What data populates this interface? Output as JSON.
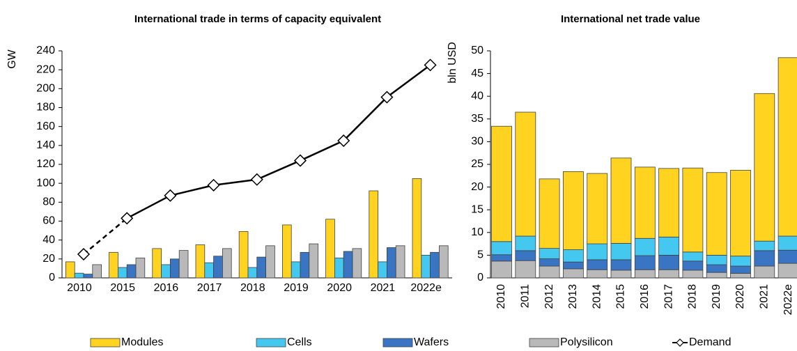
{
  "chart_data": [
    {
      "type": "grouped_bar_line",
      "title": "International trade in terms of capacity equivalent",
      "y_label": "GW",
      "categories": [
        "2010",
        "2015",
        "2016",
        "2017",
        "2018",
        "2019",
        "2020",
        "2021",
        "2022e"
      ],
      "ylim": [
        0,
        240
      ],
      "yticks": [
        0,
        20,
        40,
        60,
        80,
        100,
        120,
        140,
        160,
        180,
        200,
        220,
        240
      ],
      "series": [
        {
          "name": "Modules",
          "color": "#FFD320",
          "values": [
            17,
            27,
            31,
            35,
            49,
            56,
            62,
            92,
            105
          ]
        },
        {
          "name": "Cells",
          "color": "#45C8F0",
          "values": [
            5,
            11,
            14,
            16,
            11,
            17,
            21,
            17,
            24
          ]
        },
        {
          "name": "Wafers",
          "color": "#3A75C4",
          "values": [
            4,
            14,
            20,
            23,
            22,
            27,
            28,
            32,
            27
          ]
        },
        {
          "name": "Polysilicon",
          "color": "#B9B9B9",
          "values": [
            14,
            21,
            29,
            31,
            34,
            36,
            31,
            34,
            34
          ]
        },
        {
          "name": "Demand",
          "color": "#000000",
          "type": "line",
          "dashed_first_segment": true,
          "values": [
            25,
            63,
            87,
            98,
            104,
            124,
            145,
            191,
            225
          ]
        }
      ]
    },
    {
      "type": "stacked_bar",
      "title": "International net trade value",
      "y_label": "bln USD",
      "categories": [
        "2010",
        "2011",
        "2012",
        "2013",
        "2014",
        "2015",
        "2016",
        "2017",
        "2018",
        "2019",
        "2020",
        "2021",
        "2022e"
      ],
      "ylim": [
        0,
        50
      ],
      "yticks": [
        0,
        5,
        10,
        15,
        20,
        25,
        30,
        35,
        40,
        45,
        50
      ],
      "series": [
        {
          "name": "Modules",
          "color": "#FFD320",
          "values": [
            25.4,
            27.3,
            15.3,
            17.2,
            15.5,
            18.8,
            15.7,
            15.1,
            18.5,
            18.2,
            18.9,
            32.5,
            39.3
          ]
        },
        {
          "name": "Cells",
          "color": "#45C8F0",
          "values": [
            2.9,
            3.2,
            2.3,
            2.7,
            3.5,
            3.6,
            3.8,
            4.0,
            2.0,
            2.1,
            2.2,
            2.1,
            3.1
          ]
        },
        {
          "name": "Wafers",
          "color": "#3A75C4",
          "values": [
            1.4,
            2.2,
            1.6,
            1.5,
            2.2,
            2.3,
            3.1,
            3.2,
            2.0,
            1.7,
            1.6,
            3.4,
            2.9
          ]
        },
        {
          "name": "Polysilicon",
          "color": "#B9B9B9",
          "values": [
            3.7,
            3.8,
            2.6,
            2.0,
            1.8,
            1.7,
            1.8,
            1.8,
            1.7,
            1.2,
            1.0,
            2.6,
            3.2
          ]
        }
      ]
    }
  ]
}
